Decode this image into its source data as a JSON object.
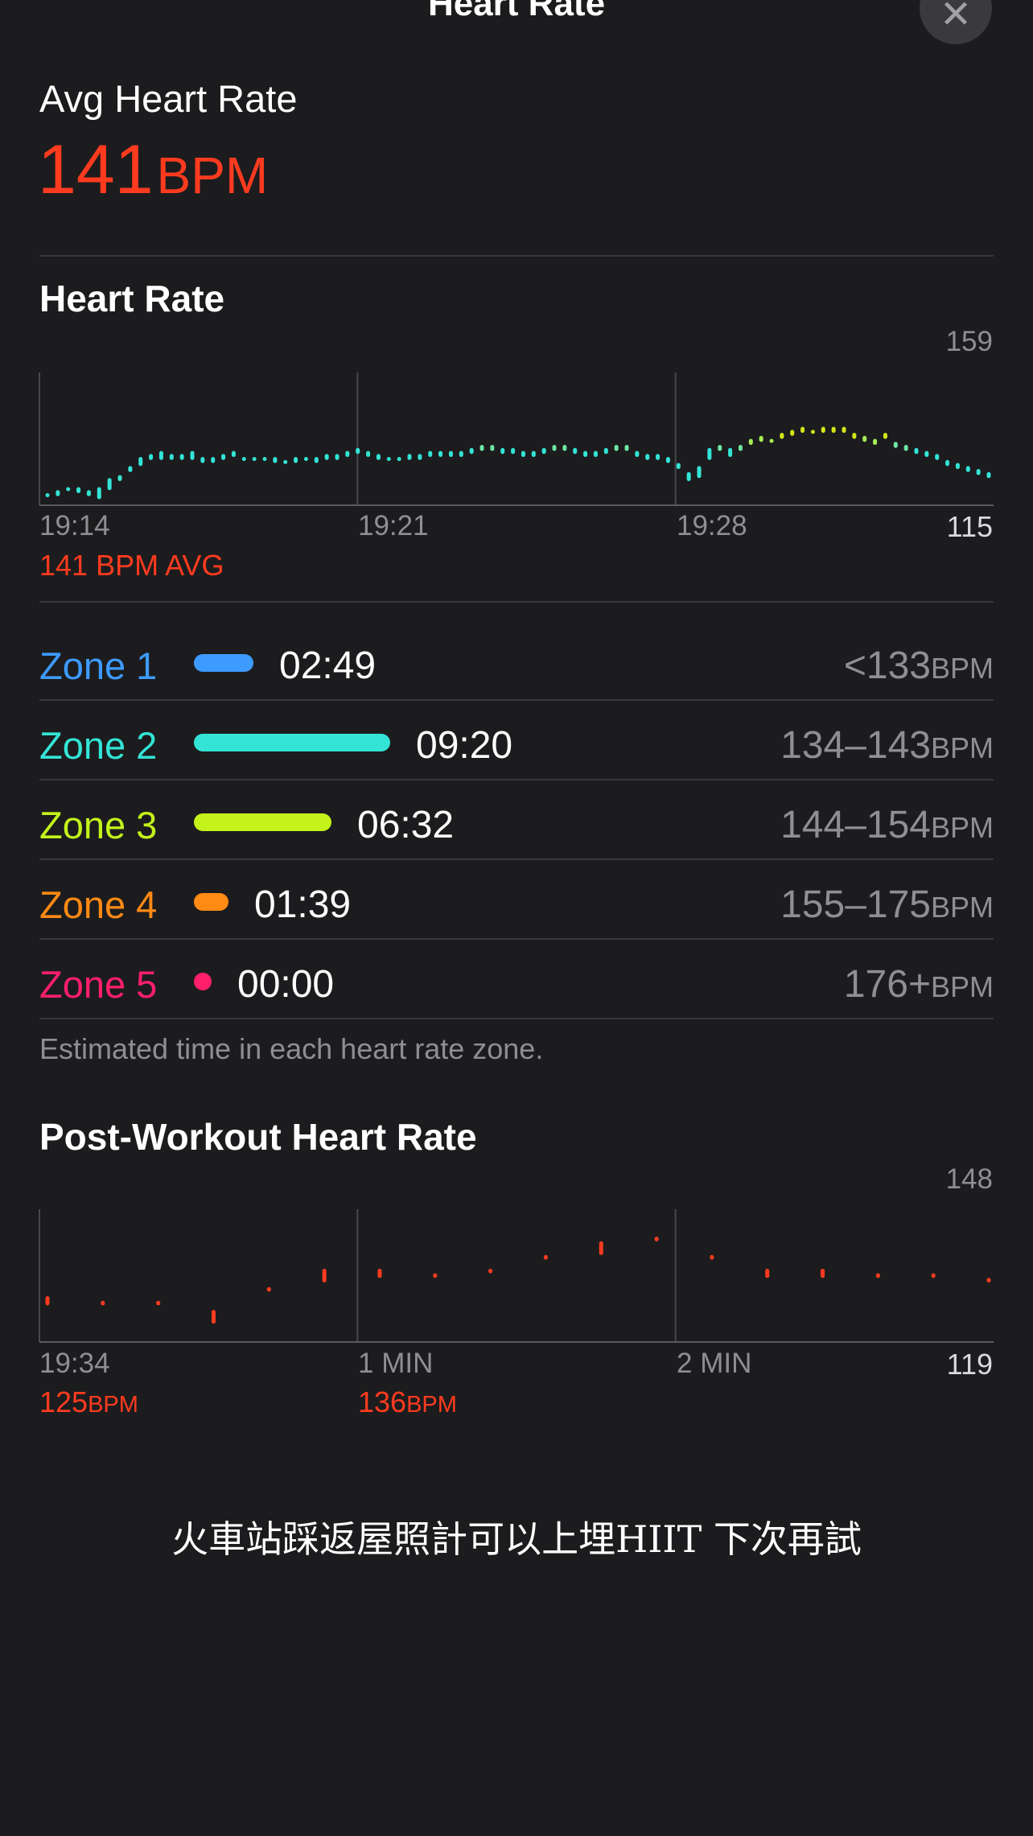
{
  "header": {
    "title": "Heart Rate",
    "close_icon": "close-icon"
  },
  "summary": {
    "label": "Avg Heart Rate",
    "value": "141",
    "unit": "BPM"
  },
  "heart_rate_chart": {
    "title": "Heart Rate",
    "y_max_label": "159",
    "y_min_label": "115",
    "x_labels": [
      "19:14",
      "19:21",
      "19:28"
    ],
    "avg_label": "141 BPM AVG"
  },
  "zones": [
    {
      "name": "Zone 1",
      "time": "02:49",
      "range": "<133",
      "unit": "BPM",
      "color": "#3d9bff",
      "minutes": 2.82
    },
    {
      "name": "Zone 2",
      "time": "09:20",
      "range": "134–143",
      "unit": "BPM",
      "color": "#33e4d6",
      "minutes": 9.33
    },
    {
      "name": "Zone 3",
      "time": "06:32",
      "range": "144–154",
      "unit": "BPM",
      "color": "#c3f31b",
      "minutes": 6.53
    },
    {
      "name": "Zone 4",
      "time": "01:39",
      "range": "155–175",
      "unit": "BPM",
      "color": "#ff8a14",
      "minutes": 1.65
    },
    {
      "name": "Zone 5",
      "time": "00:00",
      "range": "176+",
      "unit": "BPM",
      "color": "#ff1f6b",
      "minutes": 0
    }
  ],
  "zones_note": "Estimated time in each heart rate zone.",
  "post_chart": {
    "title": "Post-Workout Heart Rate",
    "y_max_label": "148",
    "y_min_label": "119",
    "x_labels": [
      "19:34",
      "1 MIN",
      "2 MIN"
    ],
    "stat1_value": "125",
    "stat1_unit": "BPM",
    "stat2_value": "136",
    "stat2_unit": "BPM"
  },
  "caption": "火車站踩返屋照計可以上埋HIIT 下次再試",
  "chart_data": [
    {
      "type": "scatter",
      "title": "Heart Rate",
      "x_ticks": [
        "19:14",
        "19:21",
        "19:28"
      ],
      "ylim": [
        115,
        159
      ],
      "avg": 141,
      "series": [
        {
          "values": [
            [
              118,
              119
            ],
            [
              118,
              120
            ],
            [
              120,
              121
            ],
            [
              119,
              121
            ],
            [
              118,
              120
            ],
            [
              117,
              121
            ],
            [
              120,
              124
            ],
            [
              123,
              125
            ],
            [
              126,
              128
            ],
            [
              128,
              131
            ],
            [
              130,
              132
            ],
            [
              130,
              133
            ],
            [
              130,
              132
            ],
            [
              130,
              132
            ],
            [
              130,
              133
            ],
            [
              129,
              131
            ],
            [
              129,
              131
            ],
            [
              130,
              132
            ],
            [
              131,
              133
            ],
            [
              130,
              131
            ],
            [
              130,
              131
            ],
            [
              130,
              131
            ],
            [
              129,
              131
            ],
            [
              129,
              130
            ],
            [
              129,
              131
            ],
            [
              130,
              131
            ],
            [
              129,
              131
            ],
            [
              130,
              132
            ],
            [
              130,
              132
            ],
            [
              131,
              133
            ],
            [
              132,
              134
            ],
            [
              131,
              133
            ],
            [
              130,
              132
            ],
            [
              130,
              131
            ],
            [
              130,
              131
            ],
            [
              130,
              132
            ],
            [
              130,
              132
            ],
            [
              131,
              133
            ],
            [
              131,
              133
            ],
            [
              131,
              133
            ],
            [
              131,
              133
            ],
            [
              132,
              134
            ],
            [
              133,
              135
            ],
            [
              133,
              135
            ],
            [
              132,
              134
            ],
            [
              132,
              134
            ],
            [
              131,
              133
            ],
            [
              131,
              133
            ],
            [
              132,
              134
            ],
            [
              133,
              135
            ],
            [
              133,
              135
            ],
            [
              132,
              134
            ],
            [
              131,
              133
            ],
            [
              131,
              133
            ],
            [
              132,
              134
            ],
            [
              133,
              135
            ],
            [
              133,
              135
            ],
            [
              131,
              133
            ],
            [
              130,
              132
            ],
            [
              130,
              132
            ],
            [
              129,
              131
            ],
            [
              127,
              129
            ],
            [
              123,
              126
            ],
            [
              124,
              128
            ],
            [
              130,
              134
            ],
            [
              133,
              135
            ],
            [
              131,
              134
            ],
            [
              133,
              135
            ],
            [
              135,
              137
            ],
            [
              136,
              138
            ],
            [
              136,
              137
            ],
            [
              137,
              139
            ],
            [
              138,
              140
            ],
            [
              139,
              141
            ],
            [
              139,
              140
            ],
            [
              139,
              141
            ],
            [
              139,
              141
            ],
            [
              139,
              141
            ],
            [
              137,
              139
            ],
            [
              136,
              138
            ],
            [
              135,
              137
            ],
            [
              137,
              139
            ],
            [
              134,
              136
            ],
            [
              133,
              135
            ],
            [
              132,
              134
            ],
            [
              131,
              133
            ],
            [
              130,
              132
            ],
            [
              128,
              130
            ],
            [
              127,
              129
            ],
            [
              126,
              128
            ],
            [
              125,
              127
            ],
            [
              124,
              126
            ]
          ]
        }
      ]
    },
    {
      "type": "scatter",
      "title": "Post-Workout Heart Rate",
      "x_ticks": [
        "19:34",
        "1 MIN",
        "2 MIN"
      ],
      "ylim": [
        119,
        148
      ],
      "series": [
        {
          "values": [
            [
              127,
              129
            ],
            [
              127,
              128
            ],
            [
              127,
              128
            ],
            [
              123,
              126
            ],
            [
              130,
              131
            ],
            [
              132,
              135
            ],
            [
              133,
              135
            ],
            [
              133,
              134
            ],
            [
              134,
              135
            ],
            [
              137,
              138
            ],
            [
              138,
              141
            ],
            [
              141,
              142
            ],
            [
              137,
              138
            ],
            [
              133,
              135
            ],
            [
              133,
              135
            ],
            [
              133,
              134
            ],
            [
              133,
              134
            ],
            [
              132,
              133
            ]
          ]
        }
      ]
    }
  ]
}
